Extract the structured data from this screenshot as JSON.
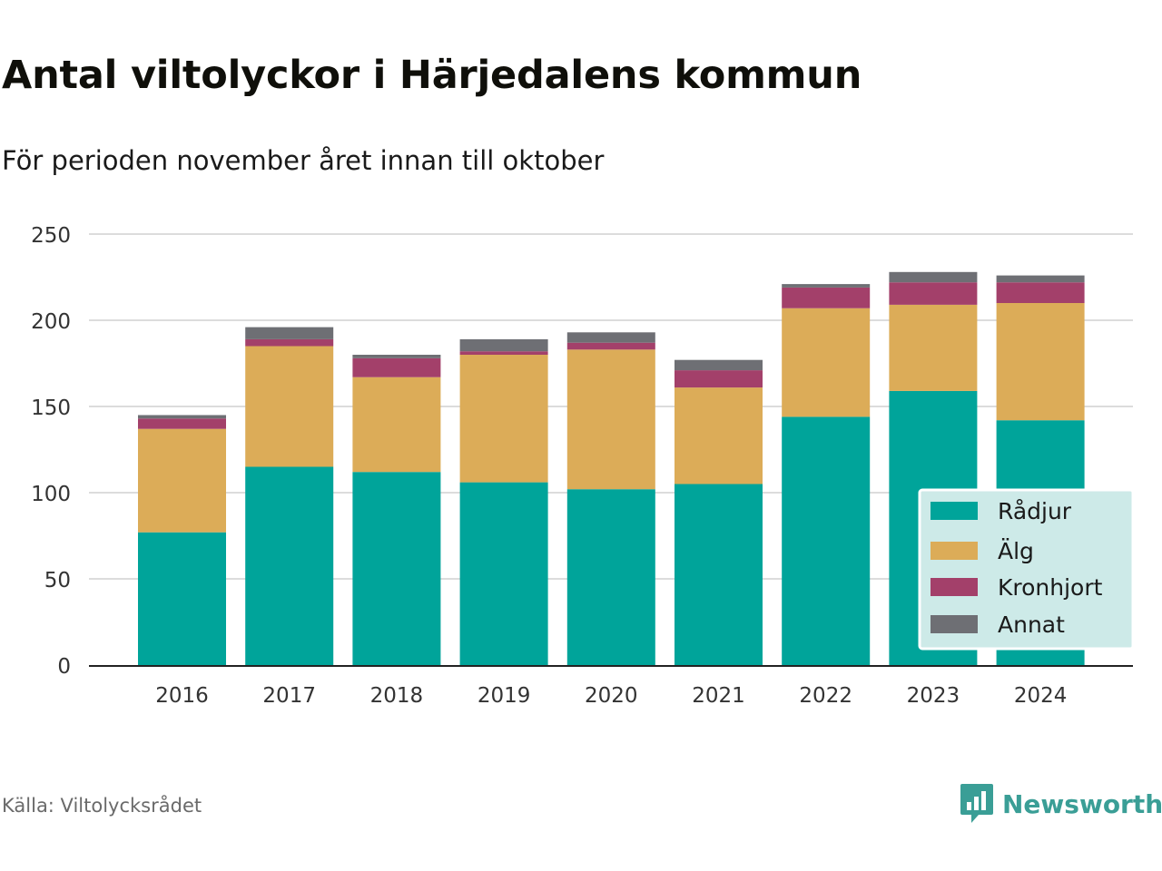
{
  "title": "Antal viltolyckor i Härjedalens kommun",
  "subtitle": "För perioden november året innan till oktober",
  "source": "Källa: Viltolycksrådet",
  "brand": "Newsworthy",
  "colors": {
    "Rådjur": "#00a49a",
    "Älg": "#dcac58",
    "Kronhjort": "#a3406a",
    "Annat": "#6e6f74"
  },
  "chart_data": {
    "type": "bar",
    "stacked": true,
    "categories": [
      "2016",
      "2017",
      "2018",
      "2019",
      "2020",
      "2021",
      "2022",
      "2023",
      "2024"
    ],
    "series": [
      {
        "name": "Rådjur",
        "values": [
          77,
          115,
          112,
          106,
          102,
          105,
          144,
          159,
          142
        ]
      },
      {
        "name": "Älg",
        "values": [
          60,
          70,
          55,
          74,
          81,
          56,
          63,
          50,
          68
        ]
      },
      {
        "name": "Kronhjort",
        "values": [
          6,
          4,
          11,
          2,
          4,
          10,
          12,
          13,
          12
        ]
      },
      {
        "name": "Annat",
        "values": [
          2,
          7,
          2,
          7,
          6,
          6,
          2,
          6,
          4
        ]
      }
    ],
    "ylim": [
      0,
      250
    ],
    "yticks": [
      0,
      50,
      100,
      150,
      200,
      250
    ],
    "grid": true,
    "legend": "bottom-right"
  }
}
